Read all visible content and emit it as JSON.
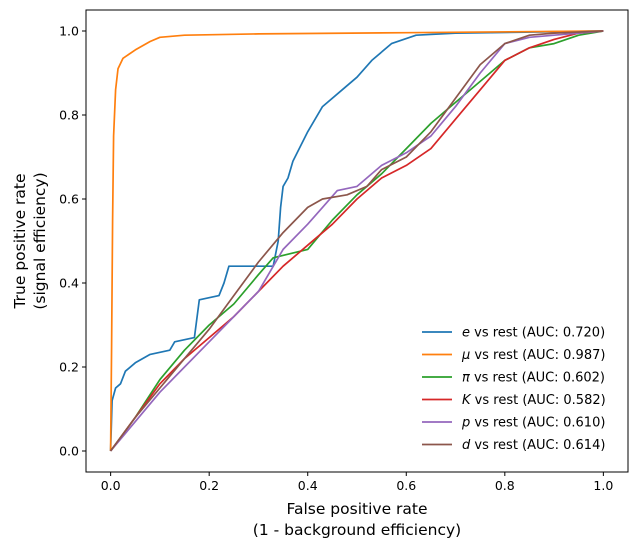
{
  "chart_data": {
    "type": "line",
    "title": "",
    "xlabel_lines": [
      "False positive rate",
      "(1 - background efficiency)"
    ],
    "ylabel_lines": [
      "True positive rate",
      "(signal efficiency)"
    ],
    "xlim": [
      -0.05,
      1.05
    ],
    "ylim": [
      -0.05,
      1.05
    ],
    "x_ticks": [
      0.0,
      0.2,
      0.4,
      0.6,
      0.8,
      1.0
    ],
    "x_tick_labels": [
      "0.0",
      "0.2",
      "0.4",
      "0.6",
      "0.8",
      "1.0"
    ],
    "y_ticks": [
      0.0,
      0.2,
      0.4,
      0.6,
      0.8,
      1.0
    ],
    "y_tick_labels": [
      "0.0",
      "0.2",
      "0.4",
      "0.6",
      "0.8",
      "1.0"
    ],
    "grid": false,
    "legend_position": "lower-right",
    "series": [
      {
        "particle": "e",
        "suffix": " vs rest (AUC: 0.720)",
        "color": "#1f77b4",
        "points": [
          [
            0,
            0
          ],
          [
            0.003,
            0.12
          ],
          [
            0.01,
            0.15
          ],
          [
            0.02,
            0.16
          ],
          [
            0.03,
            0.19
          ],
          [
            0.05,
            0.21
          ],
          [
            0.08,
            0.23
          ],
          [
            0.12,
            0.24
          ],
          [
            0.13,
            0.26
          ],
          [
            0.17,
            0.27
          ],
          [
            0.18,
            0.36
          ],
          [
            0.22,
            0.37
          ],
          [
            0.23,
            0.4
          ],
          [
            0.24,
            0.44
          ],
          [
            0.33,
            0.44
          ],
          [
            0.34,
            0.5
          ],
          [
            0.345,
            0.58
          ],
          [
            0.35,
            0.63
          ],
          [
            0.36,
            0.65
          ],
          [
            0.37,
            0.69
          ],
          [
            0.4,
            0.76
          ],
          [
            0.43,
            0.82
          ],
          [
            0.47,
            0.86
          ],
          [
            0.5,
            0.89
          ],
          [
            0.53,
            0.93
          ],
          [
            0.57,
            0.97
          ],
          [
            0.62,
            0.99
          ],
          [
            0.7,
            0.995
          ],
          [
            1.0,
            1.0
          ]
        ]
      },
      {
        "particle": "μ",
        "suffix": " vs rest (AUC: 0.987)",
        "color": "#ff7f0e",
        "points": [
          [
            0,
            0
          ],
          [
            0.002,
            0.25
          ],
          [
            0.004,
            0.55
          ],
          [
            0.006,
            0.75
          ],
          [
            0.01,
            0.86
          ],
          [
            0.015,
            0.91
          ],
          [
            0.025,
            0.935
          ],
          [
            0.05,
            0.955
          ],
          [
            0.08,
            0.975
          ],
          [
            0.1,
            0.985
          ],
          [
            0.15,
            0.99
          ],
          [
            0.3,
            0.993
          ],
          [
            0.6,
            0.996
          ],
          [
            1.0,
            1.0
          ]
        ]
      },
      {
        "particle": "π",
        "suffix": " vs rest (AUC: 0.602)",
        "color": "#2ca02c",
        "points": [
          [
            0,
            0
          ],
          [
            0.05,
            0.08
          ],
          [
            0.1,
            0.17
          ],
          [
            0.15,
            0.24
          ],
          [
            0.2,
            0.3
          ],
          [
            0.25,
            0.35
          ],
          [
            0.3,
            0.42
          ],
          [
            0.33,
            0.46
          ],
          [
            0.4,
            0.48
          ],
          [
            0.45,
            0.55
          ],
          [
            0.5,
            0.61
          ],
          [
            0.55,
            0.66
          ],
          [
            0.6,
            0.72
          ],
          [
            0.65,
            0.78
          ],
          [
            0.7,
            0.83
          ],
          [
            0.75,
            0.88
          ],
          [
            0.8,
            0.93
          ],
          [
            0.85,
            0.96
          ],
          [
            0.9,
            0.97
          ],
          [
            0.95,
            0.99
          ],
          [
            1.0,
            1.0
          ]
        ]
      },
      {
        "particle": "K",
        "suffix": " vs rest (AUC: 0.582)",
        "color": "#d62728",
        "points": [
          [
            0,
            0
          ],
          [
            0.05,
            0.08
          ],
          [
            0.1,
            0.16
          ],
          [
            0.15,
            0.22
          ],
          [
            0.2,
            0.27
          ],
          [
            0.25,
            0.32
          ],
          [
            0.3,
            0.38
          ],
          [
            0.35,
            0.44
          ],
          [
            0.4,
            0.49
          ],
          [
            0.45,
            0.54
          ],
          [
            0.5,
            0.6
          ],
          [
            0.55,
            0.65
          ],
          [
            0.6,
            0.68
          ],
          [
            0.65,
            0.72
          ],
          [
            0.7,
            0.79
          ],
          [
            0.75,
            0.86
          ],
          [
            0.8,
            0.93
          ],
          [
            0.85,
            0.96
          ],
          [
            0.9,
            0.98
          ],
          [
            0.95,
            0.995
          ],
          [
            1.0,
            1.0
          ]
        ]
      },
      {
        "particle": "p",
        "suffix": " vs rest (AUC: 0.610)",
        "color": "#9467bd",
        "points": [
          [
            0,
            0
          ],
          [
            0.05,
            0.07
          ],
          [
            0.1,
            0.14
          ],
          [
            0.15,
            0.2
          ],
          [
            0.2,
            0.26
          ],
          [
            0.25,
            0.32
          ],
          [
            0.3,
            0.38
          ],
          [
            0.35,
            0.48
          ],
          [
            0.4,
            0.54
          ],
          [
            0.43,
            0.58
          ],
          [
            0.46,
            0.62
          ],
          [
            0.5,
            0.63
          ],
          [
            0.55,
            0.68
          ],
          [
            0.6,
            0.71
          ],
          [
            0.65,
            0.75
          ],
          [
            0.7,
            0.82
          ],
          [
            0.75,
            0.9
          ],
          [
            0.8,
            0.97
          ],
          [
            0.85,
            0.985
          ],
          [
            0.9,
            0.99
          ],
          [
            1.0,
            1.0
          ]
        ]
      },
      {
        "particle": "d",
        "suffix": " vs rest (AUC: 0.614)",
        "color": "#8c564b",
        "points": [
          [
            0,
            0
          ],
          [
            0.05,
            0.08
          ],
          [
            0.1,
            0.15
          ],
          [
            0.15,
            0.22
          ],
          [
            0.2,
            0.29
          ],
          [
            0.25,
            0.37
          ],
          [
            0.3,
            0.45
          ],
          [
            0.35,
            0.52
          ],
          [
            0.4,
            0.58
          ],
          [
            0.43,
            0.6
          ],
          [
            0.48,
            0.61
          ],
          [
            0.52,
            0.63
          ],
          [
            0.55,
            0.67
          ],
          [
            0.6,
            0.7
          ],
          [
            0.65,
            0.76
          ],
          [
            0.7,
            0.84
          ],
          [
            0.75,
            0.92
          ],
          [
            0.8,
            0.97
          ],
          [
            0.85,
            0.99
          ],
          [
            0.9,
            0.995
          ],
          [
            1.0,
            1.0
          ]
        ]
      }
    ]
  }
}
